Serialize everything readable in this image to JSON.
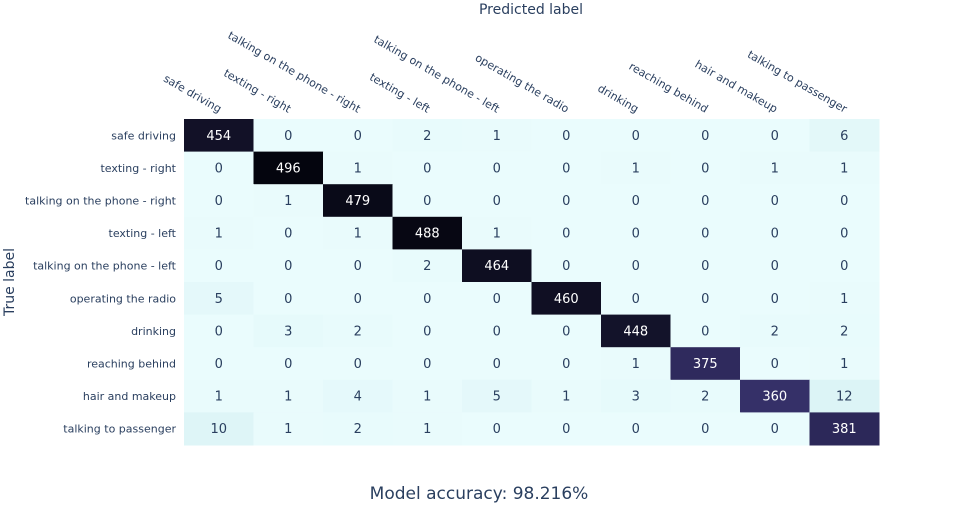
{
  "chart_data": {
    "type": "heatmap",
    "title": "",
    "xlabel": "Predicted label",
    "ylabel": "True label",
    "x_categories": [
      "safe driving",
      "texting - right",
      "talking on the phone - right",
      "texting - left",
      "talking on the phone - left",
      "operating the radio",
      "drinking",
      "reaching behind",
      "hair and makeup",
      "talking to passenger"
    ],
    "y_categories": [
      "safe driving",
      "texting - right",
      "talking on the phone - right",
      "texting - left",
      "talking on the phone - left",
      "operating the radio",
      "drinking",
      "reaching behind",
      "hair and makeup",
      "talking to passenger"
    ],
    "values": [
      [
        454,
        0,
        0,
        2,
        1,
        0,
        0,
        0,
        0,
        6
      ],
      [
        0,
        496,
        1,
        0,
        0,
        0,
        1,
        0,
        1,
        1
      ],
      [
        0,
        1,
        479,
        0,
        0,
        0,
        0,
        0,
        0,
        0
      ],
      [
        1,
        0,
        1,
        488,
        1,
        0,
        0,
        0,
        0,
        0
      ],
      [
        0,
        0,
        0,
        2,
        464,
        0,
        0,
        0,
        0,
        0
      ],
      [
        5,
        0,
        0,
        0,
        0,
        460,
        0,
        0,
        0,
        1
      ],
      [
        0,
        3,
        2,
        0,
        0,
        0,
        448,
        0,
        2,
        2
      ],
      [
        0,
        0,
        0,
        0,
        0,
        0,
        1,
        375,
        0,
        1
      ],
      [
        1,
        1,
        4,
        1,
        5,
        1,
        3,
        2,
        360,
        12
      ],
      [
        10,
        1,
        2,
        1,
        0,
        0,
        0,
        0,
        0,
        381
      ]
    ],
    "colorscale": [
      "#edfdfd",
      "#00000f"
    ],
    "zlim": [
      0,
      496
    ],
    "footer": "Model accuracy: 98.216%"
  }
}
